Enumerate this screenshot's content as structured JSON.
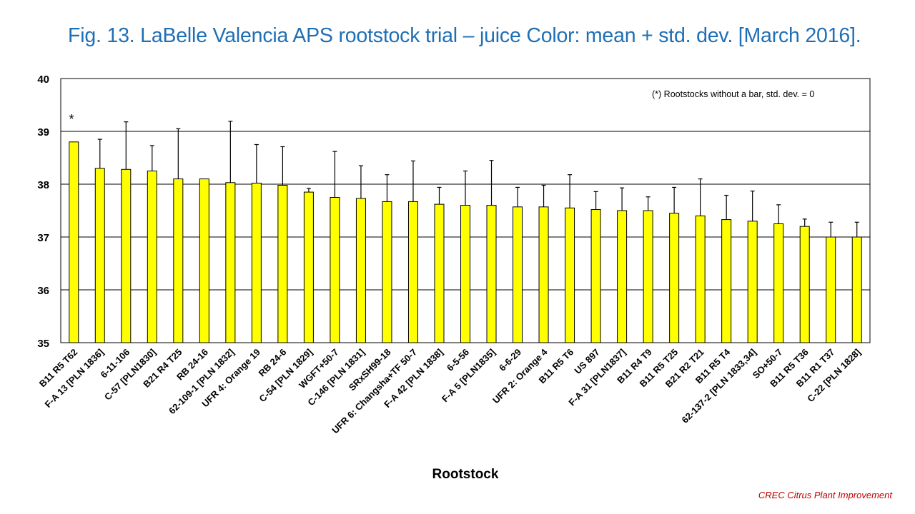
{
  "slide": {
    "title": "Fig. 13. LaBelle Valencia APS rootstock trial – juice Color: mean + std. dev. [March 2016].",
    "footer": "CREC Citrus Plant Improvement"
  },
  "colors": {
    "title": "#1f6fb5",
    "footer": "#c00000",
    "bar_fill": "#ffff00",
    "bar_stroke": "#000000",
    "gridline": "#000000",
    "text": "#000000"
  },
  "chart_data": {
    "type": "bar",
    "title": "",
    "xlabel": "Rootstock",
    "ylabel": "",
    "ylim": [
      35,
      40
    ],
    "yticks": [
      35,
      36,
      37,
      38,
      39,
      40
    ],
    "grid": true,
    "legend": "none",
    "note": "(*) Rootstocks without  a bar, std. dev. = 0",
    "annotation": "*",
    "categories": [
      "B11 R5 T62",
      "F-A 13 [PLN 1836]",
      "6-11-106",
      "C-57 [PLN1830]",
      "B21 R4 T25",
      "RB 24-16",
      "62-109-1 [PLN 1832]",
      "UFR 4: Orange 19",
      "RB 24-6",
      "C-54 [PLN 1829]",
      "WGFT+50-7",
      "C-146 [PLN 1831]",
      "SRxSH99-18",
      "UFR 6: Changsha+TF 50-7",
      "F-A 42 [PLN 1838]",
      "6-5-56",
      "F-A 5 [PLN1835]",
      "6-6-29",
      "UFR 2: Orange 4",
      "B11 R5 T6",
      "US 897",
      "F-A 31 [PLN1837]",
      "B11 R4 T9",
      "B11 R5 T25",
      "B21 R2 T21",
      "B11 R5 T4",
      "62-137-2 [PLN 1833,34]",
      "SO+50-7",
      "B11 R5 T36",
      "B11 R1 T37",
      "C-22 [PLN 1828]"
    ],
    "series": [
      {
        "values": [
          38.8,
          38.3,
          38.28,
          38.25,
          38.1,
          38.1,
          38.03,
          38.02,
          37.98,
          37.85,
          37.75,
          37.73,
          37.67,
          37.67,
          37.62,
          37.6,
          37.6,
          37.57,
          37.57,
          37.55,
          37.52,
          37.5,
          37.5,
          37.45,
          37.4,
          37.33,
          37.3,
          37.25,
          37.2,
          37.0,
          37.0
        ],
        "std_dev": [
          0,
          0.55,
          0.9,
          0.48,
          0.95,
          0,
          1.16,
          0.73,
          0.73,
          0.07,
          0.87,
          0.62,
          0.51,
          0.77,
          0.32,
          0.65,
          0.85,
          0.37,
          0.41,
          0.63,
          0.34,
          0.43,
          0.26,
          0.49,
          0.7,
          0.46,
          0.57,
          0.36,
          0.14,
          0.28,
          0.28
        ]
      }
    ]
  }
}
